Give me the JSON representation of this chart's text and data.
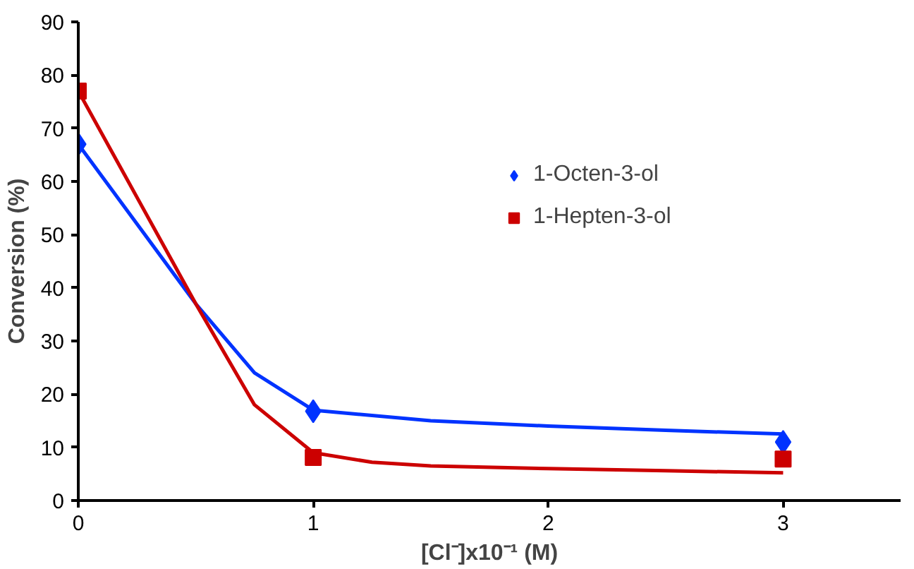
{
  "chart_data": {
    "type": "scatter",
    "xlabel": "[Cl⁻]x10⁻¹ (M)",
    "ylabel": "Conversion (%)",
    "xlim": [
      0,
      3.5
    ],
    "xticks": [
      0,
      1,
      2,
      3
    ],
    "ylim": [
      0,
      90
    ],
    "yticks": [
      0,
      10,
      20,
      30,
      40,
      50,
      60,
      70,
      80,
      90
    ],
    "grid": false,
    "legend": "right",
    "series": [
      {
        "name": "1-Octen-3-ol",
        "color": "#0033ff",
        "marker": "diamond",
        "x": [
          0,
          1,
          3
        ],
        "values": [
          67,
          16.8,
          11
        ]
      },
      {
        "name": "1-Hepten-3-ol",
        "color": "#cc0000",
        "marker": "square",
        "x": [
          0,
          1,
          3
        ],
        "values": [
          77,
          8.1,
          7.8
        ]
      },
      {
        "type": "line",
        "color": "#0033ff",
        "x": [
          0,
          0.25,
          0.5,
          0.75,
          1,
          1.5,
          2,
          2.5,
          3
        ],
        "values": [
          67,
          52,
          37,
          24,
          17,
          15,
          14,
          13.2,
          12.5
        ]
      },
      {
        "type": "line",
        "color": "#cc0000",
        "x": [
          0,
          0.25,
          0.5,
          0.75,
          1,
          1.25,
          1.5,
          2,
          2.5,
          3
        ],
        "values": [
          77,
          57,
          37,
          18,
          9,
          7.2,
          6.5,
          6,
          5.6,
          5.2
        ]
      }
    ]
  }
}
